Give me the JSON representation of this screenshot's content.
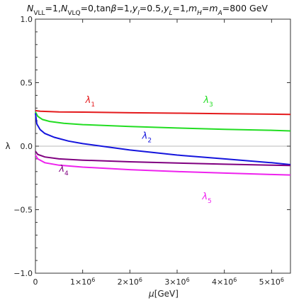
{
  "chart_data": {
    "type": "line",
    "title_parts": [
      {
        "t": "N",
        "i": true
      },
      {
        "t": "VLL",
        "sub": true
      },
      {
        "t": "=1,"
      },
      {
        "t": "N",
        "i": true
      },
      {
        "t": "VLQ",
        "sub": true
      },
      {
        "t": "=0,tan"
      },
      {
        "t": "β",
        "i": true
      },
      {
        "t": "=1,"
      },
      {
        "t": "y",
        "i": true
      },
      {
        "t": "l",
        "sub": true,
        "i": true
      },
      {
        "t": "=0.5,"
      },
      {
        "t": "y",
        "i": true
      },
      {
        "t": "L",
        "sub": true,
        "i": true
      },
      {
        "t": "=1,"
      },
      {
        "t": "m",
        "i": true
      },
      {
        "t": "H",
        "sub": true,
        "i": true
      },
      {
        "t": "="
      },
      {
        "t": "m",
        "i": true
      },
      {
        "t": "A",
        "sub": true,
        "i": true
      },
      {
        "t": "=800 GeV"
      }
    ],
    "xlabel_parts": [
      {
        "t": "μ",
        "i": true
      },
      {
        "t": "[GeV]"
      }
    ],
    "ylabel": "λ",
    "xlim": [
      0,
      5400000
    ],
    "ylim": [
      -1.0,
      1.0
    ],
    "x_ticks": [
      {
        "value": 0,
        "mant": "0",
        "exp": ""
      },
      {
        "value": 1000000,
        "mant": "1×10",
        "exp": "6"
      },
      {
        "value": 2000000,
        "mant": "2×10",
        "exp": "6"
      },
      {
        "value": 3000000,
        "mant": "3×10",
        "exp": "6"
      },
      {
        "value": 4000000,
        "mant": "4×10",
        "exp": "6"
      },
      {
        "value": 5000000,
        "mant": "5×10",
        "exp": "6"
      }
    ],
    "y_ticks": [
      {
        "value": -1.0,
        "label": "−1.0"
      },
      {
        "value": -0.5,
        "label": "−0.5"
      },
      {
        "value": 0.0,
        "label": "0.0"
      },
      {
        "value": 0.5,
        "label": "0.5"
      },
      {
        "value": 1.0,
        "label": "1.0"
      }
    ],
    "zero_line": true,
    "grid": false,
    "series": [
      {
        "name": "λ",
        "sub": "1",
        "color": "#e41a1c",
        "x": [
          0,
          100000,
          500000,
          1000000,
          2000000,
          3000000,
          4000000,
          5000000,
          5400000
        ],
        "y": [
          0.28,
          0.275,
          0.27,
          0.268,
          0.263,
          0.26,
          0.256,
          0.252,
          0.25
        ],
        "label_at": [
          1060000,
          0.34
        ]
      },
      {
        "name": "λ",
        "sub": "3",
        "color": "#22dd22",
        "x": [
          0,
          50000,
          150000,
          300000,
          600000,
          1000000,
          2000000,
          3000000,
          4000000,
          5000000,
          5400000
        ],
        "y": [
          0.27,
          0.235,
          0.21,
          0.195,
          0.18,
          0.17,
          0.155,
          0.143,
          0.133,
          0.125,
          0.12
        ],
        "label_at": [
          3560000,
          0.34
        ]
      },
      {
        "name": "λ",
        "sub": "2",
        "color": "#1515dd",
        "x": [
          0,
          30000,
          100000,
          200000,
          400000,
          700000,
          1000000,
          1500000,
          2000000,
          3000000,
          4000000,
          5000000,
          5400000
        ],
        "y": [
          0.26,
          0.175,
          0.13,
          0.1,
          0.07,
          0.04,
          0.02,
          -0.005,
          -0.03,
          -0.07,
          -0.1,
          -0.13,
          -0.145
        ],
        "label_at": [
          2260000,
          0.06
        ]
      },
      {
        "name": "λ",
        "sub": "4",
        "color": "#800080",
        "x": [
          0,
          50000,
          200000,
          500000,
          1000000,
          2000000,
          3000000,
          4000000,
          5000000,
          5400000
        ],
        "y": [
          -0.04,
          -0.065,
          -0.085,
          -0.1,
          -0.11,
          -0.123,
          -0.133,
          -0.142,
          -0.15,
          -0.152
        ],
        "label_at": [
          500000,
          -0.2
        ]
      },
      {
        "name": "λ",
        "sub": "5",
        "color": "#ee22ee",
        "x": [
          0,
          50000,
          200000,
          500000,
          1000000,
          2000000,
          3000000,
          4000000,
          5000000,
          5400000
        ],
        "y": [
          -0.07,
          -0.1,
          -0.13,
          -0.15,
          -0.165,
          -0.185,
          -0.2,
          -0.212,
          -0.223,
          -0.227
        ],
        "label_at": [
          3530000,
          -0.42
        ]
      }
    ]
  }
}
